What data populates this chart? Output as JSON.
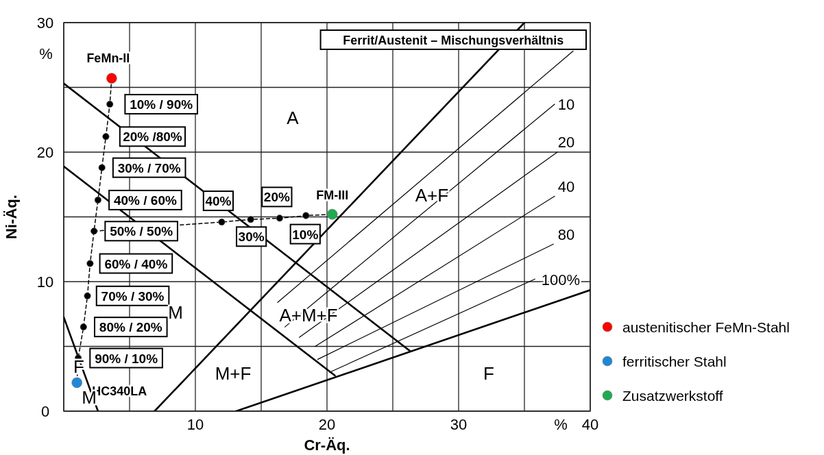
{
  "chart_data": {
    "type": "scatter",
    "xlabel": "Cr-Äq.",
    "ylabel": "Ni-Äq.",
    "xlim": [
      0,
      40
    ],
    "ylim": [
      0,
      30
    ],
    "xticks": [
      {
        "value": 0,
        "label": null
      },
      {
        "value": 5,
        "label": null
      },
      10,
      {
        "value": 15,
        "label": null
      },
      20,
      {
        "value": 25,
        "label": null
      },
      30,
      {
        "value": 35,
        "label": null
      },
      40
    ],
    "yticks": [
      0,
      {
        "value": 5,
        "label": null
      },
      10,
      {
        "value": 15,
        "label": null
      },
      20,
      {
        "value": 25,
        "label": null
      },
      30
    ],
    "grid": true,
    "legend": "right",
    "series": [
      {
        "type": "line",
        "color": "#000000",
        "line_style": "solid",
        "marker": "none",
        "x": [
          0,
          26.3
        ],
        "values": [
          25.3,
          4.65
        ]
      },
      {
        "type": "line",
        "color": "#000000",
        "line_style": "solid",
        "marker": "none",
        "x": [
          0,
          20.6
        ],
        "values": [
          18.9,
          2.75
        ]
      },
      {
        "type": "line",
        "color": "#000000",
        "line_style": "solid",
        "marker": "none",
        "x": [
          0,
          2.6
        ],
        "values": [
          7.25,
          0
        ]
      },
      {
        "type": "line",
        "color": "#000000",
        "line_style": "solid",
        "marker": "none",
        "x": [
          6.9,
          35
        ],
        "values": [
          0,
          30
        ]
      },
      {
        "type": "line",
        "color": "#000000",
        "line_style": "solid",
        "marker": "none",
        "x": [
          13.1,
          40
        ],
        "values": [
          0,
          9.35
        ]
      },
      {
        "type": "line",
        "color": "#000000",
        "line_style": "solid",
        "marker": "none",
        "x": [
          16.25,
          38.7
        ],
        "values": [
          8.4,
          27.8
        ]
      },
      {
        "type": "line",
        "color": "#000000",
        "line_style": "solid",
        "marker": "none",
        "x": [
          16.8,
          37.3
        ],
        "values": [
          6.5,
          23.7
        ]
      },
      {
        "type": "line",
        "color": "#000000",
        "line_style": "solid",
        "marker": "none",
        "x": [
          17.9,
          37.5
        ],
        "values": [
          5.7,
          20
        ]
      },
      {
        "type": "line",
        "color": "#000000",
        "line_style": "solid",
        "marker": "none",
        "x": [
          19.1,
          37.3
        ],
        "values": [
          5,
          16.6
        ]
      },
      {
        "type": "line",
        "color": "#000000",
        "line_style": "solid",
        "marker": "none",
        "x": [
          19.3,
          37.2
        ],
        "values": [
          4,
          12.9
        ]
      },
      {
        "type": "line",
        "color": "#000000",
        "line_style": "solid",
        "marker": "none",
        "x": [
          20.2,
          35.8
        ],
        "values": [
          3,
          10.2
        ]
      },
      {
        "type": "line",
        "color": "#000000",
        "line_style": "dashed",
        "marker": "none",
        "x": [
          3.64,
          3.5,
          3.2,
          2.9,
          2.6,
          2.3,
          2.0,
          1.8,
          1.5,
          1.1,
          1.0
        ],
        "values": [
          25.7,
          23.7,
          21.2,
          18.8,
          16.3,
          13.9,
          11.4,
          8.9,
          6.5,
          4.1,
          2.2
        ]
      },
      {
        "type": "line",
        "color": "#000000",
        "line_style": "dashed",
        "marker": "none",
        "x": [
          2.3,
          12.0,
          14.2,
          16.4,
          18.4,
          20.4
        ],
        "values": [
          13.9,
          14.6,
          14.8,
          14.9,
          15.1,
          15.2
        ]
      },
      {
        "color": "#000000",
        "marker": "circle",
        "x": [
          3.5,
          3.2,
          2.9,
          2.6,
          2.3,
          2.0,
          1.8,
          1.5,
          1.1,
          12.0,
          14.2,
          16.4,
          18.4
        ],
        "values": [
          23.7,
          21.2,
          18.8,
          16.3,
          13.9,
          11.4,
          8.9,
          6.5,
          4.1,
          14.6,
          14.8,
          14.9,
          15.1
        ]
      },
      {
        "name": "austenitischer FeMn-Stahl",
        "color": "#ff0000",
        "marker": "circle",
        "x": [
          3.64
        ],
        "values": [
          25.7
        ]
      },
      {
        "name": "ferritischer Stahl",
        "color": "#1e88d6",
        "marker": "circle",
        "x": [
          1.0
        ],
        "values": [
          2.2
        ]
      },
      {
        "name": "Zusatzwerkstoff",
        "color": "#1faa50",
        "marker": "circle",
        "x": [
          20.4
        ],
        "values": [
          15.2
        ]
      }
    ],
    "annotations": [
      {
        "text": "FeMn-II",
        "x": 3.64,
        "y": 25.7
      },
      {
        "text": "10% / 90%",
        "x": 3.5,
        "y": 23.7
      },
      {
        "text": "20% /80%",
        "x": 3.2,
        "y": 21.2
      },
      {
        "text": "30% / 70%",
        "x": 2.9,
        "y": 18.8
      },
      {
        "text": "40% / 60%",
        "x": 2.6,
        "y": 16.3
      },
      {
        "text": "50% / 50%",
        "x": 2.3,
        "y": 13.9
      },
      {
        "text": "60% / 40%",
        "x": 2.0,
        "y": 11.4
      },
      {
        "text": "70% / 30%",
        "x": 1.8,
        "y": 8.9
      },
      {
        "text": "80% / 20%",
        "x": 1.5,
        "y": 6.5
      },
      {
        "text": "90% / 10%",
        "x": 1.1,
        "y": 4.1
      },
      {
        "text": "HC340LA",
        "x": 1.0,
        "y": 2.2
      },
      {
        "text": "40%",
        "x": 12.0,
        "y": 14.6
      },
      {
        "text": "30%",
        "x": 14.2,
        "y": 14.8
      },
      {
        "text": "20%",
        "x": 16.4,
        "y": 14.9
      },
      {
        "text": "10%",
        "x": 18.4,
        "y": 15.1
      },
      {
        "text": "FM-III",
        "x": 20.4,
        "y": 15.2
      },
      "A",
      "A+F",
      "A+M+F",
      "M+F",
      "F",
      "M",
      "F",
      "M",
      "10",
      "20",
      "40",
      "80",
      "100%",
      "Ferrit/Austenit – Mischungsverhältnis",
      "%",
      "%"
    ]
  }
}
